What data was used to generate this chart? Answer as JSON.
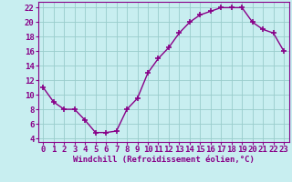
{
  "x": [
    0,
    1,
    2,
    3,
    4,
    5,
    6,
    7,
    8,
    9,
    10,
    11,
    12,
    13,
    14,
    15,
    16,
    17,
    18,
    19,
    20,
    21,
    22,
    23
  ],
  "y": [
    11,
    9,
    8,
    8,
    6.5,
    4.8,
    4.8,
    5,
    8,
    9.5,
    13,
    15,
    16.5,
    18.5,
    20,
    21,
    21.5,
    22,
    22,
    22,
    20,
    19,
    18.5,
    16
  ],
  "line_color": "#880088",
  "marker": "P",
  "marker_size": 3,
  "background_color": "#c8eef0",
  "grid_color": "#99cccc",
  "xlabel": "Windchill (Refroidissement éolien,°C)",
  "xlim": [
    -0.5,
    23.5
  ],
  "ylim": [
    3.5,
    22.8
  ],
  "yticks": [
    4,
    6,
    8,
    10,
    12,
    14,
    16,
    18,
    20,
    22
  ],
  "xticks": [
    0,
    1,
    2,
    3,
    4,
    5,
    6,
    7,
    8,
    9,
    10,
    11,
    12,
    13,
    14,
    15,
    16,
    17,
    18,
    19,
    20,
    21,
    22,
    23
  ],
  "tick_color": "#880088",
  "label_color": "#880088",
  "spine_color": "#880088",
  "tick_fontsize": 6.5,
  "label_fontsize": 6.5
}
